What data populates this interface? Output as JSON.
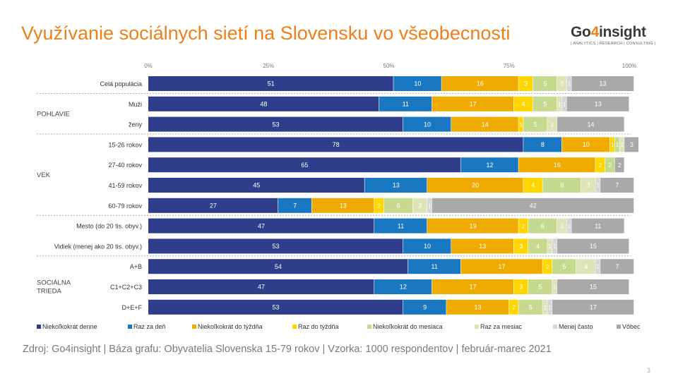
{
  "title": "Využívanie sociálnych sietí na Slovensku vo všeobecnosti",
  "logo": {
    "main_prefix": "Go",
    "main_four": "4",
    "main_suffix": "insight",
    "tagline": "| ANALYTICS | RESEARCH | CONSULTING |"
  },
  "source": "Zdroj: Go4insight | Báza grafu: Obyvatelia Slovenska 15-79 rokov | Vzorka: 1000 respondentov | február-marec 2021",
  "page_number": "3",
  "chart_data": {
    "type": "bar",
    "orientation": "horizontal",
    "stacked": true,
    "xlim": [
      0,
      100
    ],
    "x_ticks": [
      "0%",
      "25%",
      "50%",
      "75%",
      "100%"
    ],
    "categories": [
      "Celá populácia",
      "Muži",
      "ženy",
      "15-26 rokov",
      "27-40 rokov",
      "41-59 rokov",
      "60-79 rokov",
      "Mesto (do 20 tis. obyv.)",
      "Vidiek (menej ako 20 tis. obyv.)",
      "A+B",
      "C1+C2+C3",
      "D+E+F"
    ],
    "groups": [
      {
        "label": "",
        "rows": [
          0
        ]
      },
      {
        "label": "POHLAVIE",
        "rows": [
          1,
          2
        ]
      },
      {
        "label": "VEK",
        "rows": [
          3,
          4,
          5,
          6
        ]
      },
      {
        "label": "",
        "rows": [
          7,
          8
        ]
      },
      {
        "label": "SOCIÁLNA TRIEDA",
        "rows": [
          9,
          10,
          11
        ]
      }
    ],
    "series": [
      {
        "name": "Niekoľkokrát denne",
        "color": "#2e3e8a",
        "values": [
          51,
          48,
          53,
          78,
          65,
          45,
          27,
          47,
          53,
          54,
          47,
          53
        ]
      },
      {
        "name": "Raz za deň",
        "color": "#1a78c2",
        "values": [
          10,
          11,
          10,
          8,
          12,
          13,
          7,
          11,
          10,
          11,
          12,
          9
        ]
      },
      {
        "name": "Niekoľkokrát do týždňa",
        "color": "#f0ab00",
        "values": [
          16,
          17,
          14,
          10,
          16,
          20,
          13,
          19,
          13,
          17,
          17,
          13
        ]
      },
      {
        "name": "Raz do týždňa",
        "color": "#ffd600",
        "values": [
          3,
          4,
          1,
          1,
          2,
          4,
          2,
          2,
          3,
          2,
          3,
          2
        ]
      },
      {
        "name": "Niekoľkokrát do mesiaca",
        "color": "#c5d98f",
        "values": [
          5,
          5,
          5,
          1,
          2,
          8,
          6,
          6,
          4,
          5,
          5,
          5
        ]
      },
      {
        "name": "Raz za mesiac",
        "color": "#dfe3b8",
        "values": [
          2,
          1,
          2,
          1,
          null,
          3,
          3,
          2,
          1,
          4,
          1,
          1
        ]
      },
      {
        "name": "Menej často",
        "color": "#d6d6d6",
        "values": [
          1,
          1,
          null,
          null,
          null,
          1,
          1,
          1,
          1,
          1,
          null,
          1
        ]
      },
      {
        "name": "Vôbec",
        "color": "#a9a9a9",
        "values": [
          13,
          13,
          14,
          3,
          2,
          7,
          42,
          11,
          15,
          7,
          15,
          17
        ]
      }
    ]
  }
}
